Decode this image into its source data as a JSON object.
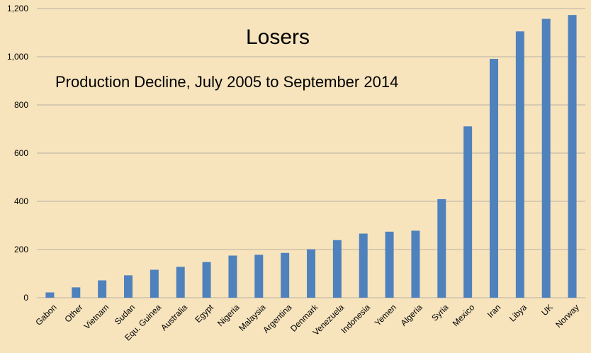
{
  "chart_data": {
    "type": "bar",
    "title": "Losers",
    "subtitle": "Production Decline, July 2005 to September 2014",
    "categories": [
      "Gabon",
      "Other",
      "Vietnam",
      "Sudan",
      "Equ. Guinea",
      "Australia",
      "Egypt",
      "Nigeria",
      "Malaysia",
      "Argentina",
      "Denmark",
      "Venezuela",
      "Indonesia",
      "Yemen",
      "Algeria",
      "Syria",
      "Mexico",
      "Iran",
      "Libya",
      "UK",
      "Norway"
    ],
    "values": [
      22,
      43,
      72,
      93,
      116,
      128,
      148,
      175,
      178,
      186,
      201,
      239,
      266,
      274,
      278,
      409,
      711,
      991,
      1105,
      1157,
      1173
    ],
    "ylim": [
      0,
      1200
    ],
    "yticks": [
      0,
      200,
      400,
      600,
      800,
      1000,
      1200
    ],
    "ytick_labels": [
      "0",
      "200",
      "400",
      "600",
      "800",
      "1,000",
      "1,200"
    ],
    "grid": true,
    "legend": "none",
    "colors": {
      "bar": "#4f81bd",
      "background": "#f7e4bd",
      "grid": "#b8b0a2",
      "text": "#000000"
    }
  }
}
